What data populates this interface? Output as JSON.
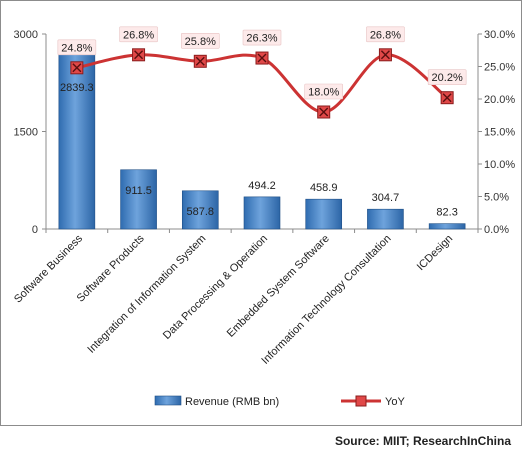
{
  "chart_data": {
    "type": "bar",
    "categories": [
      "Software Business",
      "Software Products",
      "Integration of Information System",
      "Data Processing & Operation",
      "Embedded System Software",
      "Information Technology Consultation",
      "ICDesign"
    ],
    "series": [
      {
        "name": "Revenue (RMB bn)",
        "type": "bar",
        "axis": "left",
        "color": "#4a86c8",
        "values": [
          2839.3,
          911.5,
          587.8,
          494.2,
          458.9,
          304.7,
          82.3
        ],
        "labels": [
          "2839.3",
          "911.5",
          "587.8",
          "494.2",
          "458.9",
          "304.7",
          "82.3"
        ]
      },
      {
        "name": "YoY",
        "type": "line",
        "axis": "right",
        "color": "#cc3333",
        "values": [
          24.8,
          26.8,
          25.8,
          26.3,
          18.0,
          26.8,
          20.2
        ],
        "labels": [
          "24.8%",
          "26.8%",
          "25.8%",
          "26.3%",
          "18.0%",
          "26.8%",
          "20.2%"
        ]
      }
    ],
    "y_left": {
      "min": 0,
      "max": 3000,
      "ticks": [
        0,
        1500,
        3000
      ],
      "tick_labels": [
        "0",
        "1500",
        "3000"
      ]
    },
    "y_right": {
      "min": 0,
      "max": 30,
      "ticks": [
        0,
        5,
        10,
        15,
        20,
        25,
        30
      ],
      "tick_labels": [
        "0.0%",
        "5.0%",
        "10.0%",
        "15.0%",
        "20.0%",
        "25.0%",
        "30.0%"
      ]
    },
    "grid": false,
    "legend": {
      "position": "bottom",
      "items": [
        {
          "label": "Revenue (RMB bn)",
          "kind": "bar"
        },
        {
          "label": "YoY",
          "kind": "line"
        }
      ]
    },
    "source": "Source: MIIT; ResearchInChina"
  }
}
